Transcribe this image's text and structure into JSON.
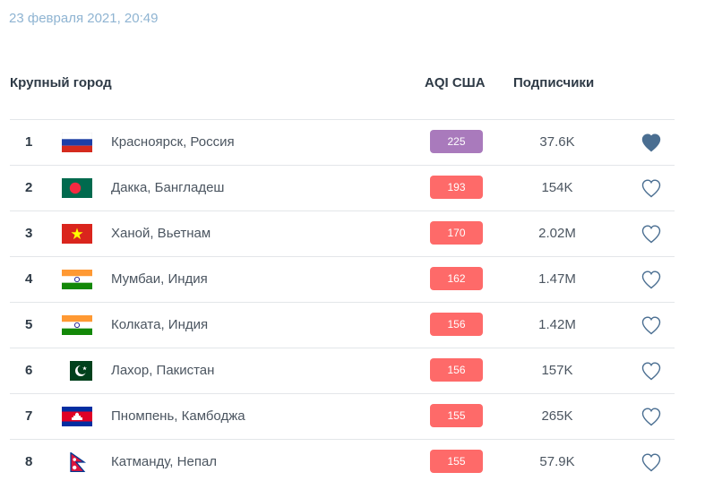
{
  "timestamp": "23 февраля 2021, 20:49",
  "headers": {
    "city": "Крупный город",
    "aqi": "AQI США",
    "subscribers": "Подписчики"
  },
  "colors": {
    "very_unhealthy": "#a97abc",
    "unhealthy": "#fe6a69",
    "heart": "#4a6e91"
  },
  "rows": [
    {
      "rank": "1",
      "flag": "russia-flag",
      "city": "Красноярск, Россия",
      "aqi": "225",
      "aqi_level": "very_unhealthy",
      "subscribers": "37.6K",
      "favorited": true
    },
    {
      "rank": "2",
      "flag": "bangladesh-flag",
      "city": "Дакка, Бангладеш",
      "aqi": "193",
      "aqi_level": "unhealthy",
      "subscribers": "154K",
      "favorited": false
    },
    {
      "rank": "3",
      "flag": "vietnam-flag",
      "city": "Ханой, Вьетнам",
      "aqi": "170",
      "aqi_level": "unhealthy",
      "subscribers": "2.02M",
      "favorited": false
    },
    {
      "rank": "4",
      "flag": "india-flag",
      "city": "Мумбаи, Индия",
      "aqi": "162",
      "aqi_level": "unhealthy",
      "subscribers": "1.47M",
      "favorited": false
    },
    {
      "rank": "5",
      "flag": "india-flag",
      "city": "Колката, Индия",
      "aqi": "156",
      "aqi_level": "unhealthy",
      "subscribers": "1.42M",
      "favorited": false
    },
    {
      "rank": "6",
      "flag": "pakistan-flag",
      "city": "Лахор, Пакистан",
      "aqi": "156",
      "aqi_level": "unhealthy",
      "subscribers": "157K",
      "favorited": false
    },
    {
      "rank": "7",
      "flag": "cambodia-flag",
      "city": "Пномпень, Камбоджа",
      "aqi": "155",
      "aqi_level": "unhealthy",
      "subscribers": "265K",
      "favorited": false
    },
    {
      "rank": "8",
      "flag": "nepal-flag",
      "city": "Катманду, Непал",
      "aqi": "155",
      "aqi_level": "unhealthy",
      "subscribers": "57.9K",
      "favorited": false
    }
  ]
}
